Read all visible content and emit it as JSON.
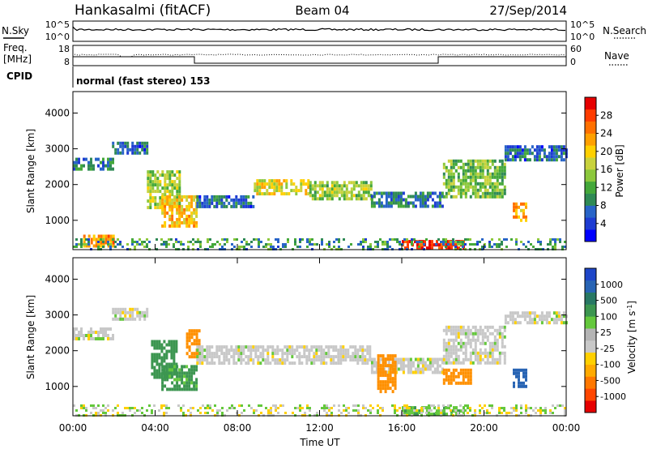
{
  "header": {
    "station": "Hankasalmi (fitACF)",
    "beam": "Beam 04",
    "date": "27/Sep/2014"
  },
  "left_labels": {
    "nsky": "N.Sky",
    "freq_line1": "Freq.",
    "freq_line2": "[MHz]",
    "cpid": "CPID"
  },
  "right_labels": {
    "nsearch": "N.Search",
    "nave": "Nave"
  },
  "cpid_text": "normal (fast stereo) 153",
  "noise_axis": {
    "left_ticks": [
      "10^5",
      "10^0"
    ],
    "right_ticks": [
      "10^5",
      "10^0"
    ]
  },
  "freq_axis": {
    "left_ticks": [
      "18",
      "8"
    ],
    "right_ticks": [
      "60",
      "0"
    ]
  },
  "chart_data": [
    {
      "type": "heatmap",
      "panel": "power",
      "xlabel": "",
      "ylabel": "Slant Range [km]",
      "x_range": [
        "00:00",
        "00:00 (+24h)"
      ],
      "ylim": [
        180,
        4600
      ],
      "y_ticks": [
        1000,
        2000,
        3000,
        4000
      ],
      "colorbar": {
        "label": "Power [dB]",
        "ticks": [
          4,
          8,
          12,
          16,
          20,
          24,
          28
        ],
        "colors": [
          "#0000ff",
          "#1e3cd2",
          "#2864c8",
          "#2f8a55",
          "#44a83a",
          "#8cc83c",
          "#c8d23c",
          "#ffd000",
          "#ffa000",
          "#ff7000",
          "#ff3c00",
          "#e60000"
        ]
      },
      "bands": [
        {
          "t0": 0.0,
          "t1": 1.9,
          "range": [
            2450,
            2750
          ],
          "value": 9
        },
        {
          "t0": 1.9,
          "t1": 3.6,
          "range": [
            2900,
            3200
          ],
          "value": 8
        },
        {
          "t0": 3.6,
          "t1": 5.2,
          "range": [
            1400,
            2400
          ],
          "value": 16
        },
        {
          "t0": 4.3,
          "t1": 6.0,
          "range": [
            800,
            1700
          ],
          "value": 20
        },
        {
          "t0": 6.0,
          "t1": 8.8,
          "range": [
            1350,
            1700
          ],
          "value": 8
        },
        {
          "t0": 8.8,
          "t1": 11.5,
          "range": [
            1700,
            2150
          ],
          "value": 18
        },
        {
          "t0": 11.5,
          "t1": 14.5,
          "range": [
            1600,
            2100
          ],
          "value": 15
        },
        {
          "t0": 14.5,
          "t1": 18.0,
          "range": [
            1400,
            1800
          ],
          "value": 9
        },
        {
          "t0": 18.0,
          "t1": 21.0,
          "range": [
            1700,
            2700
          ],
          "value": 14
        },
        {
          "t0": 21.0,
          "t1": 24.0,
          "range": [
            2700,
            3100
          ],
          "value": 8
        },
        {
          "t0": 16.0,
          "t1": 19.0,
          "range": [
            250,
            450
          ],
          "value": 28
        },
        {
          "t0": 0.5,
          "t1": 2.0,
          "range": [
            300,
            600
          ],
          "value": 22
        },
        {
          "t0": 21.4,
          "t1": 22.1,
          "range": [
            1000,
            1500
          ],
          "value": 22
        }
      ]
    },
    {
      "type": "heatmap",
      "panel": "velocity",
      "xlabel": "Time UT",
      "ylabel": "Slant Range [km]",
      "x_ticks": [
        "00:00",
        "04:00",
        "08:00",
        "12:00",
        "16:00",
        "20:00",
        "00:00"
      ],
      "ylim": [
        180,
        4600
      ],
      "y_ticks": [
        1000,
        2000,
        3000,
        4000
      ],
      "colorbar": {
        "label": "Velocity [m s^-1]",
        "ticks": [
          "1000",
          "500",
          "100",
          "25",
          "-25",
          "-100",
          "-500",
          "-1000"
        ],
        "colors": [
          "#1e46c8",
          "#2864b4",
          "#287864",
          "#3c9650",
          "#64c83c",
          "#b4b4b4",
          "#c8c8c8",
          "#ffd000",
          "#ffaa00",
          "#ff7800",
          "#ff4600",
          "#e60000"
        ]
      },
      "bands": [
        {
          "t0": 0.0,
          "t1": 1.9,
          "range": [
            2350,
            2650
          ],
          "value": 0
        },
        {
          "t0": 1.9,
          "t1": 3.6,
          "range": [
            2900,
            3200
          ],
          "value": 0
        },
        {
          "t0": 3.8,
          "t1": 5.0,
          "range": [
            1300,
            2300
          ],
          "value": 150
        },
        {
          "t0": 4.3,
          "t1": 6.0,
          "range": [
            900,
            1600
          ],
          "value": 120
        },
        {
          "t0": 5.5,
          "t1": 6.2,
          "range": [
            1800,
            2600
          ],
          "value": -400
        },
        {
          "t0": 6.0,
          "t1": 14.5,
          "range": [
            1650,
            2150
          ],
          "value": 0
        },
        {
          "t0": 14.5,
          "t1": 18.0,
          "range": [
            1400,
            1800
          ],
          "value": 0
        },
        {
          "t0": 14.8,
          "t1": 15.7,
          "range": [
            900,
            1900
          ],
          "value": -300
        },
        {
          "t0": 18.0,
          "t1": 21.0,
          "range": [
            1700,
            2700
          ],
          "value": 0
        },
        {
          "t0": 18.0,
          "t1": 19.4,
          "range": [
            1100,
            1500
          ],
          "value": -200
        },
        {
          "t0": 21.0,
          "t1": 24.0,
          "range": [
            2800,
            3100
          ],
          "value": 0
        },
        {
          "t0": 16.0,
          "t1": 19.0,
          "range": [
            250,
            450
          ],
          "value": 90
        },
        {
          "t0": 21.4,
          "t1": 22.1,
          "range": [
            1000,
            1500
          ],
          "value": 700
        }
      ]
    }
  ]
}
